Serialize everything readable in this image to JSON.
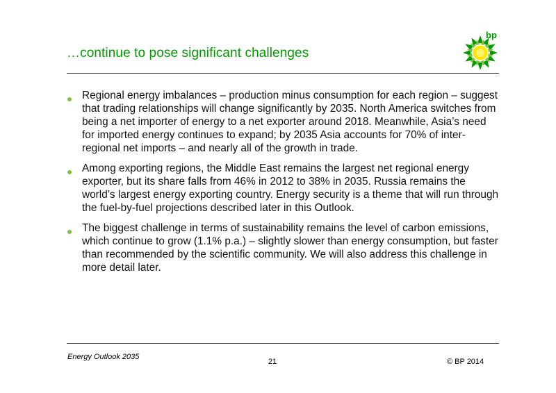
{
  "header": {
    "title": "…continue to pose significant challenges",
    "logo_text": "bp",
    "logo_icon": "bp-helios-logo-icon"
  },
  "colors": {
    "title_green": "#009a00",
    "bullet_green": "#7fc241",
    "logo_yellow": "#ffe600",
    "logo_green": "#009a00"
  },
  "bullets": [
    "Regional energy imbalances – production minus consumption for each region – suggest that trading relationships will change significantly by 2035. North America switches from being a net importer of energy to a net exporter around 2018. Meanwhile, Asia’s need for imported energy continues to expand; by 2035 Asia accounts for 70% of inter-regional net imports – and nearly all of the growth in trade.",
    "Among exporting regions, the Middle East remains the largest net regional energy exporter, but its share falls from 46% in 2012 to 38% in 2035.  Russia remains the world’s largest energy exporting country. Energy security is a theme that will run through the fuel-by-fuel projections described later in this Outlook.",
    "The biggest challenge in terms of sustainability remains the level of carbon emissions, which continue to grow (1.1% p.a.) – slightly slower than energy consumption, but faster than recommended by the scientific community. We will also address this challenge in more detail later."
  ],
  "footer": {
    "publication": "Energy Outlook 2035",
    "page_number": "21",
    "copyright": "© BP 2014"
  }
}
